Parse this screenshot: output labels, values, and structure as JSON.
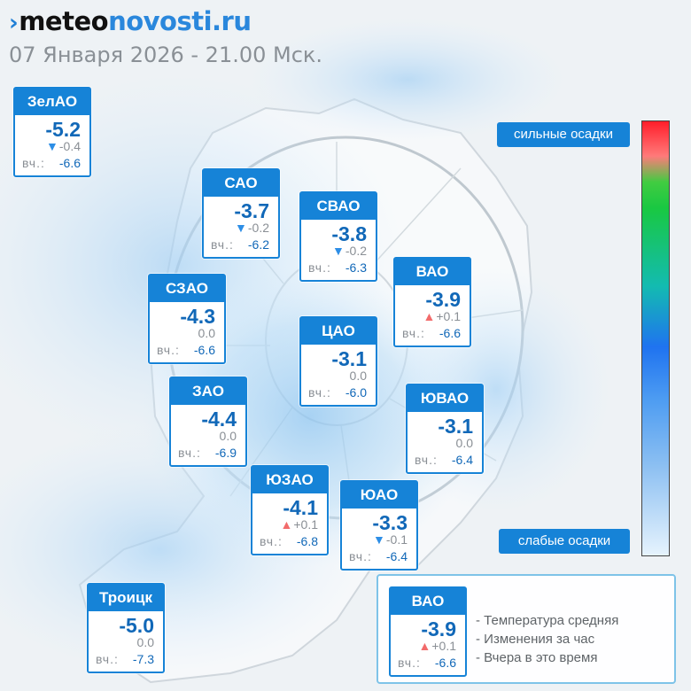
{
  "header": {
    "logo_mark": "›",
    "logo_meteo": "meteo",
    "logo_novosti": "novosti",
    "logo_ru": ".ru",
    "date": "07 Января 2026 - 21.00 Мск."
  },
  "legend": {
    "strong": "сильные осадки",
    "weak": "слабые осадки",
    "colors": [
      "#ff1e2a",
      "#41cc41",
      "#13bbb1",
      "#1f73f0",
      "#e6f3fd"
    ]
  },
  "yesterday_label": "вч.:",
  "districts": [
    {
      "name": "ЗелАО",
      "temp": "-5.2",
      "trend": "down",
      "delta": "-0.4",
      "yesterday": "-6.6"
    },
    {
      "name": "САО",
      "temp": "-3.7",
      "trend": "down",
      "delta": "-0.2",
      "yesterday": "-6.2"
    },
    {
      "name": "СВАО",
      "temp": "-3.8",
      "trend": "down",
      "delta": "-0.2",
      "yesterday": "-6.3"
    },
    {
      "name": "ВАО",
      "temp": "-3.9",
      "trend": "up",
      "delta": "+0.1",
      "yesterday": "-6.6"
    },
    {
      "name": "СЗАО",
      "temp": "-4.3",
      "trend": "none",
      "delta": "0.0",
      "yesterday": "-6.6"
    },
    {
      "name": "ЦАО",
      "temp": "-3.1",
      "trend": "none",
      "delta": "0.0",
      "yesterday": "-6.0"
    },
    {
      "name": "ЗАО",
      "temp": "-4.4",
      "trend": "none",
      "delta": "0.0",
      "yesterday": "-6.9"
    },
    {
      "name": "ЮВАО",
      "temp": "-3.1",
      "trend": "none",
      "delta": "0.0",
      "yesterday": "-6.4"
    },
    {
      "name": "ЮЗАО",
      "temp": "-4.1",
      "trend": "up",
      "delta": "+0.1",
      "yesterday": "-6.8"
    },
    {
      "name": "ЮАО",
      "temp": "-3.3",
      "trend": "down",
      "delta": "-0.1",
      "yesterday": "-6.4"
    },
    {
      "name": "Троицк",
      "temp": "-5.0",
      "trend": "none",
      "delta": "0.0",
      "yesterday": "-7.3"
    }
  ],
  "key": {
    "name": "ВАО",
    "temp": "-3.9",
    "trend": "up",
    "delta": "+0.1",
    "yesterday": "-6.6",
    "line1": "- Температура средняя",
    "line2": "- Изменения за час",
    "line3": "- Вчера в это время"
  }
}
